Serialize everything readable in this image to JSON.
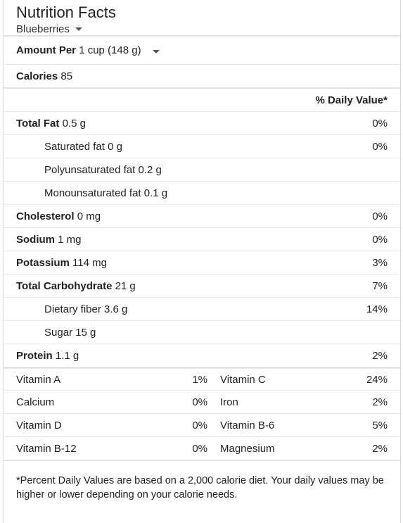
{
  "header": {
    "title": "Nutrition Facts",
    "food": "Blueberries"
  },
  "serving": {
    "label": "Amount Per",
    "value": "1 cup (148 g)"
  },
  "calories": {
    "label": "Calories",
    "value": "85"
  },
  "dv_header": "% Daily Value*",
  "nutrients": [
    {
      "name": "Total Fat",
      "amount": "0.5 g",
      "dv": "0%",
      "bold": true
    },
    {
      "name": "Saturated fat",
      "amount": "0 g",
      "dv": "0%",
      "bold": false
    },
    {
      "name": "Polyunsaturated fat",
      "amount": "0.2 g",
      "dv": "",
      "bold": false
    },
    {
      "name": "Monounsaturated fat",
      "amount": "0.1 g",
      "dv": "",
      "bold": false
    },
    {
      "name": "Cholesterol",
      "amount": "0 mg",
      "dv": "0%",
      "bold": true
    },
    {
      "name": "Sodium",
      "amount": "1 mg",
      "dv": "0%",
      "bold": true
    },
    {
      "name": "Potassium",
      "amount": "114 mg",
      "dv": "3%",
      "bold": true
    },
    {
      "name": "Total Carbohydrate",
      "amount": "21 g",
      "dv": "7%",
      "bold": true
    },
    {
      "name": "Dietary fiber",
      "amount": "3.6 g",
      "dv": "14%",
      "bold": false
    },
    {
      "name": "Sugar",
      "amount": "15 g",
      "dv": "",
      "bold": false
    },
    {
      "name": "Protein",
      "amount": "1.1 g",
      "dv": "2%",
      "bold": true
    }
  ],
  "vitamins": [
    {
      "left": "Vitamin A",
      "left_pct": "1%",
      "right": "Vitamin C",
      "right_pct": "24%"
    },
    {
      "left": "Calcium",
      "left_pct": "0%",
      "right": "Iron",
      "right_pct": "2%"
    },
    {
      "left": "Vitamin D",
      "left_pct": "0%",
      "right": "Vitamin B-6",
      "right_pct": "5%"
    },
    {
      "left": "Vitamin B-12",
      "left_pct": "0%",
      "right": "Magnesium",
      "right_pct": "2%"
    }
  ],
  "footnote": "*Percent Daily Values are based on a 2,000 calorie diet. Your daily values may be higher or lower depending on your calorie needs."
}
